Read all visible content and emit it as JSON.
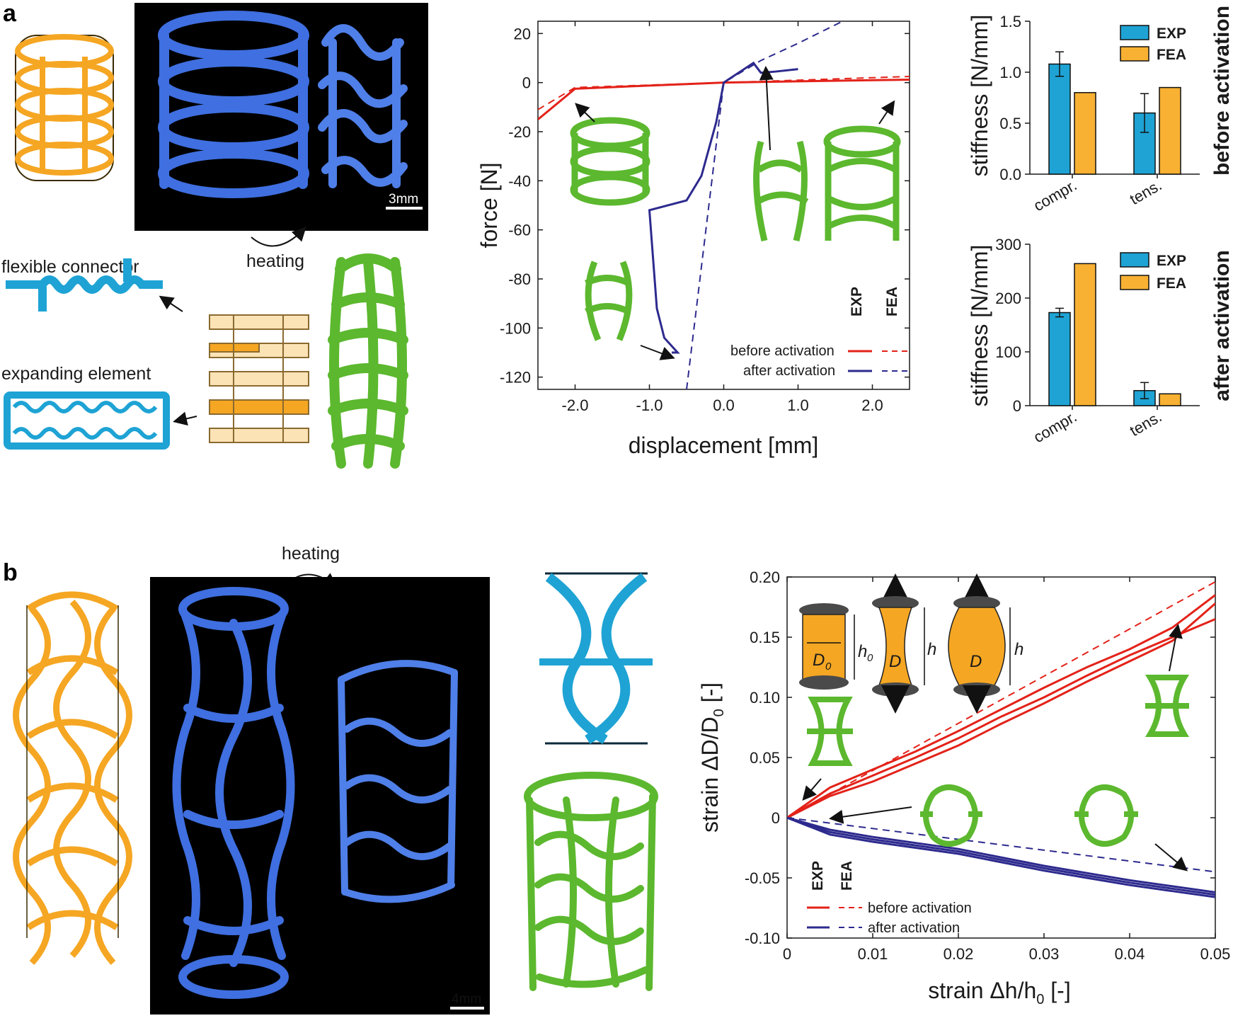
{
  "panel_a": {
    "letter": "a",
    "heating_label": "heating",
    "scale_bar": "3mm",
    "flexible_connector": "flexible connector",
    "expanding_element": "expanding element"
  },
  "panel_b": {
    "letter": "b",
    "heating_label": "heating",
    "scale_bar": "4mm",
    "schematic_labels": {
      "d0": "D",
      "d0_sub": "0",
      "h0": "h",
      "h0_sub": "0",
      "d": "D",
      "h": "h"
    }
  },
  "colors": {
    "exp": "#1ea3d4",
    "fea": "#f8b133",
    "before": "#e32219",
    "after": "#2d2a8e",
    "print": "#3f6fe0",
    "sim": "#5cb82e",
    "design": "#f5a623"
  },
  "chart_data": [
    {
      "id": "force-displacement",
      "type": "line",
      "xlabel": "displacement [mm]",
      "ylabel": "force [N]",
      "xlim": [
        -2.5,
        2.5
      ],
      "ylim": [
        -125,
        25
      ],
      "xticks": [
        -2.0,
        -1.0,
        0.0,
        1.0,
        2.0
      ],
      "xtick_labels": [
        "-2.0",
        "-1.0",
        "0.0",
        "1.0",
        "2.0"
      ],
      "yticks": [
        20,
        0,
        -20,
        -40,
        -60,
        -80,
        -100,
        -120
      ],
      "ytick_labels": [
        "20",
        "0",
        "-20",
        "-40",
        "-60",
        "-80",
        "-100",
        "-120"
      ],
      "legend_header": [
        "EXP",
        "FEA"
      ],
      "legend_placement": "bottom-right",
      "series": [
        {
          "name": "before activation",
          "method": "EXP",
          "color": "#e32219",
          "dashed": false,
          "x": [
            -2.5,
            -2.0,
            -1.0,
            0.0,
            1.0,
            2.0,
            2.5
          ],
          "y": [
            -15,
            -2.5,
            -1.2,
            0,
            0.5,
            1.0,
            1.2
          ]
        },
        {
          "name": "before activation",
          "method": "FEA",
          "color": "#e32219",
          "dashed": true,
          "x": [
            -2.5,
            -2.0,
            -1.0,
            0.0,
            1.0,
            2.0,
            2.5
          ],
          "y": [
            -11,
            -2.0,
            -1.0,
            0,
            1.0,
            2.0,
            2.5
          ]
        },
        {
          "name": "after activation",
          "method": "EXP",
          "color": "#2d2a8e",
          "dashed": false,
          "x": [
            -0.7,
            -0.62,
            -0.8,
            -0.9,
            -1.0,
            -0.5,
            -0.3,
            -0.1,
            0.0,
            0.2,
            0.4,
            0.5,
            0.7,
            1.0
          ],
          "y": [
            -110,
            -110,
            -104,
            -92,
            -52,
            -48,
            -38,
            -16,
            0,
            4,
            8,
            4,
            4.5,
            5.5
          ]
        },
        {
          "name": "after activation",
          "method": "FEA",
          "color": "#2d2a8e",
          "dashed": true,
          "x": [
            -0.5,
            0.0,
            0.5,
            1.0,
            1.6
          ],
          "y": [
            -125,
            0,
            9,
            16,
            25
          ]
        }
      ]
    },
    {
      "id": "stiffness-before",
      "type": "bar",
      "categories": [
        "compr.",
        "tens."
      ],
      "series": [
        {
          "name": "EXP",
          "color": "#1ea3d4",
          "values": [
            1.08,
            0.6
          ],
          "errors": [
            0.12,
            0.19
          ]
        },
        {
          "name": "FEA",
          "color": "#f8b133",
          "values": [
            0.8,
            0.85
          ]
        }
      ],
      "ylabel": "stiffness [N/mm]",
      "ylim": [
        0,
        1.5
      ],
      "yticks": [
        0,
        0.5,
        1.0,
        1.5
      ],
      "ytick_labels": [
        "0.0",
        "0.5",
        "1.0",
        "1.5"
      ],
      "side_label": "before activation",
      "legend_placement": "top-right"
    },
    {
      "id": "stiffness-after",
      "type": "bar",
      "categories": [
        "compr.",
        "tens."
      ],
      "series": [
        {
          "name": "EXP",
          "color": "#1ea3d4",
          "values": [
            173,
            28
          ],
          "errors": [
            8,
            15
          ]
        },
        {
          "name": "FEA",
          "color": "#f8b133",
          "values": [
            264,
            22
          ]
        }
      ],
      "ylabel": "stiffness [N/mm]",
      "ylim": [
        0,
        300
      ],
      "yticks": [
        0,
        100,
        200,
        300
      ],
      "ytick_labels": [
        "0",
        "100",
        "200",
        "300"
      ],
      "side_label": "after activation",
      "legend_placement": "top-right"
    },
    {
      "id": "strain-strain",
      "type": "line",
      "xlabel": "strain Δh/h",
      "xlabel_sub": "0",
      "xlabel_unit": " [-]",
      "ylabel": "strain ΔD/D",
      "ylabel_sub": "0",
      "ylabel_unit": " [-]",
      "xlim": [
        0,
        0.05
      ],
      "ylim": [
        -0.1,
        0.2
      ],
      "xticks": [
        0,
        0.01,
        0.02,
        0.03,
        0.04,
        0.05
      ],
      "xtick_labels": [
        "0",
        "0.01",
        "0.02",
        "0.03",
        "0.04",
        "0.05"
      ],
      "yticks": [
        0.2,
        0.15,
        0.1,
        0.05,
        0,
        -0.05,
        -0.1
      ],
      "ytick_labels": [
        "0.20",
        "0.15",
        "0.10",
        "0.05",
        "0",
        "-0.05",
        "-0.10"
      ],
      "legend_header": [
        "EXP",
        "FEA"
      ],
      "legend_placement": "bottom-left",
      "series": [
        {
          "name": "before activation",
          "method": "EXP",
          "color": "#e32219",
          "dashed": false,
          "x": [
            0,
            0.005,
            0.01,
            0.015,
            0.02,
            0.025,
            0.03,
            0.035,
            0.04,
            0.045,
            0.05
          ],
          "y": [
            0,
            0.025,
            0.04,
            0.055,
            0.072,
            0.09,
            0.108,
            0.125,
            0.14,
            0.158,
            0.185
          ]
        },
        {
          "name": "before activation",
          "method": "EXP",
          "color": "#e32219",
          "dashed": false,
          "x": [
            0,
            0.005,
            0.01,
            0.015,
            0.02,
            0.025,
            0.03,
            0.035,
            0.04,
            0.045,
            0.05
          ],
          "y": [
            0,
            0.02,
            0.035,
            0.05,
            0.066,
            0.084,
            0.1,
            0.118,
            0.135,
            0.15,
            0.165
          ]
        },
        {
          "name": "before activation",
          "method": "EXP",
          "color": "#e32219",
          "dashed": false,
          "x": [
            0,
            0.005,
            0.01,
            0.015,
            0.02,
            0.025,
            0.03,
            0.035,
            0.04,
            0.045,
            0.05
          ],
          "y": [
            0,
            0.018,
            0.03,
            0.045,
            0.06,
            0.078,
            0.095,
            0.113,
            0.13,
            0.147,
            0.178
          ]
        },
        {
          "name": "before activation",
          "method": "FEA",
          "color": "#e32219",
          "dashed": true,
          "x": [
            0,
            0.05
          ],
          "y": [
            0,
            0.196
          ]
        },
        {
          "name": "after activation",
          "method": "EXP",
          "color": "#2d2a8e",
          "dashed": false,
          "x": [
            0,
            0.005,
            0.01,
            0.015,
            0.02,
            0.025,
            0.03,
            0.035,
            0.04,
            0.045,
            0.05
          ],
          "y": [
            0,
            -0.01,
            -0.016,
            -0.021,
            -0.026,
            -0.033,
            -0.04,
            -0.046,
            -0.052,
            -0.057,
            -0.062
          ]
        },
        {
          "name": "after activation",
          "method": "EXP",
          "color": "#2d2a8e",
          "dashed": false,
          "x": [
            0,
            0.005,
            0.01,
            0.015,
            0.02,
            0.025,
            0.03,
            0.035,
            0.04,
            0.045,
            0.05
          ],
          "y": [
            0,
            -0.012,
            -0.018,
            -0.023,
            -0.028,
            -0.035,
            -0.042,
            -0.048,
            -0.054,
            -0.059,
            -0.064
          ]
        },
        {
          "name": "after activation",
          "method": "EXP",
          "color": "#2d2a8e",
          "dashed": false,
          "x": [
            0,
            0.005,
            0.01,
            0.015,
            0.02,
            0.025,
            0.03,
            0.035,
            0.04,
            0.045,
            0.05
          ],
          "y": [
            0,
            -0.014,
            -0.02,
            -0.025,
            -0.03,
            -0.037,
            -0.044,
            -0.05,
            -0.056,
            -0.061,
            -0.066
          ]
        },
        {
          "name": "after activation",
          "method": "FEA",
          "color": "#2d2a8e",
          "dashed": true,
          "x": [
            0,
            0.05
          ],
          "y": [
            0,
            -0.045
          ]
        }
      ]
    }
  ]
}
